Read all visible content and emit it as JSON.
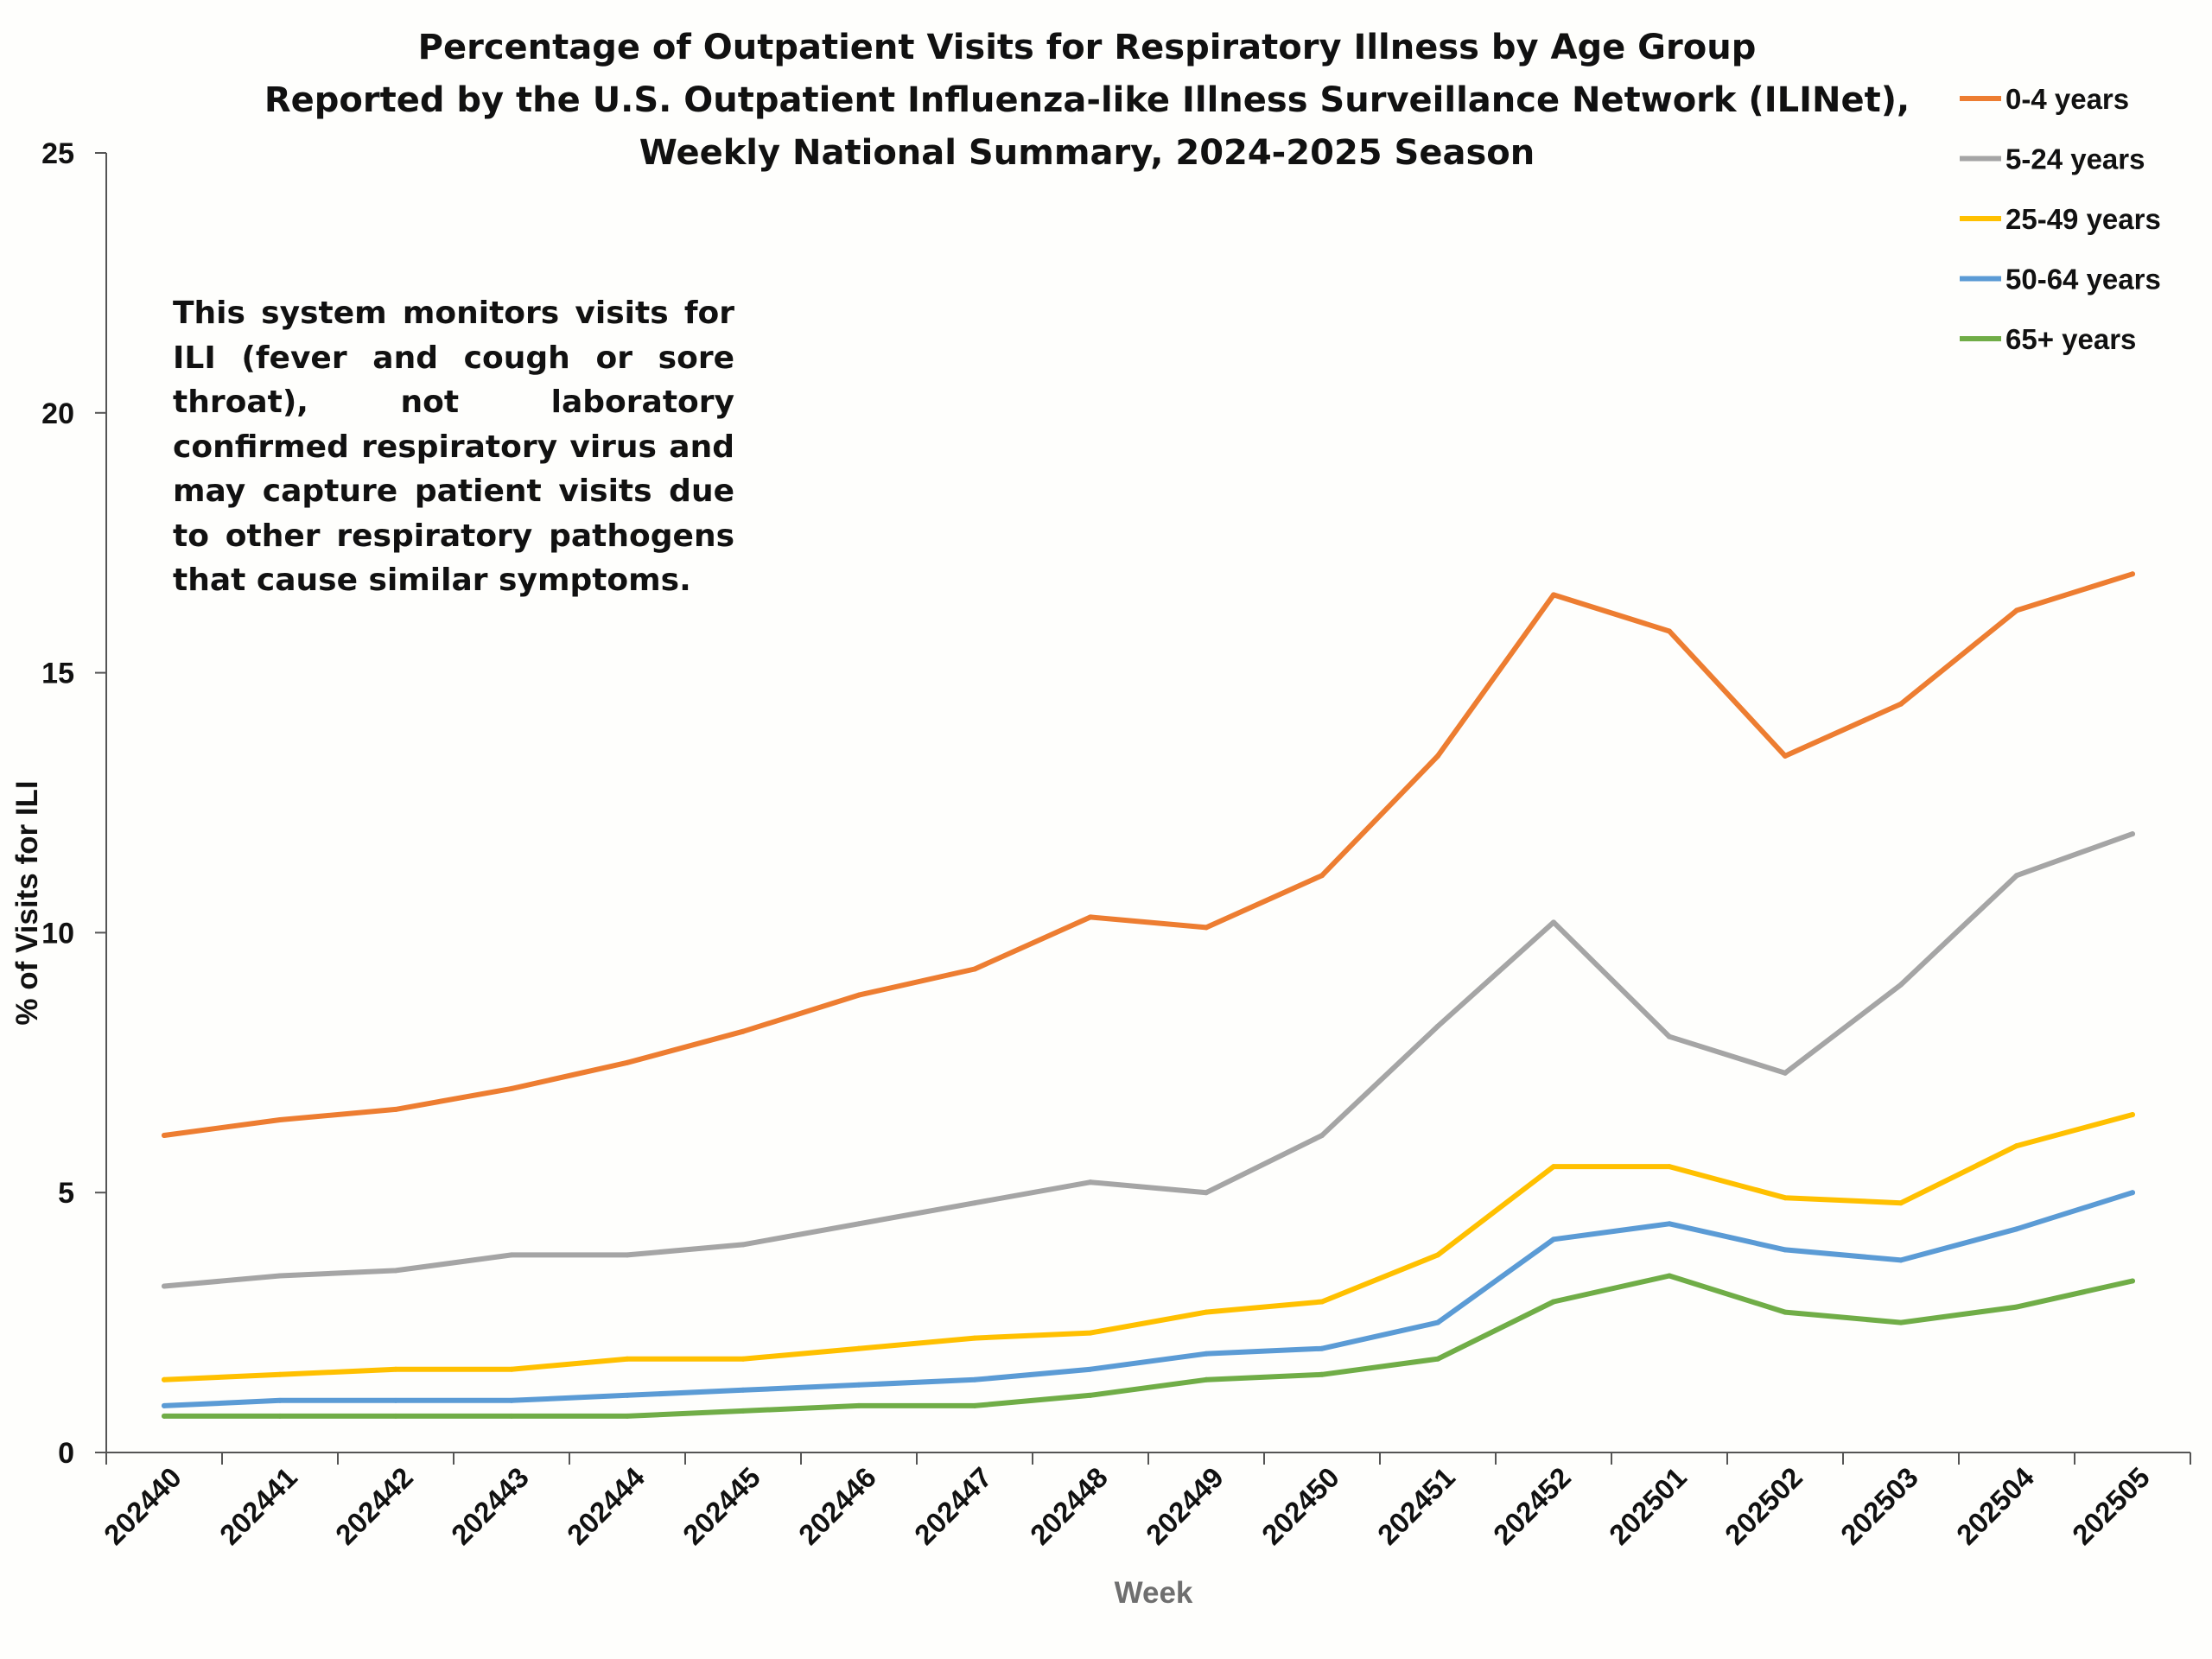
{
  "chart_data": {
    "type": "line",
    "title": [
      "Percentage of Outpatient Visits for Respiratory Illness by Age Group",
      "Reported by the U.S. Outpatient Influenza-like Illness Surveillance Network (ILINet),",
      "Weekly National Summary, 2024-2025 Season"
    ],
    "xlabel": "Week",
    "ylabel": "% of Visits for ILI",
    "ylim": [
      0,
      25
    ],
    "yticks": [
      "0",
      "5",
      "10",
      "15",
      "20",
      "25"
    ],
    "categories": [
      "202440",
      "202441",
      "202442",
      "202443",
      "202444",
      "202445",
      "202446",
      "202447",
      "202448",
      "202449",
      "202450",
      "202451",
      "202452",
      "202501",
      "202502",
      "202503",
      "202504",
      "202505"
    ],
    "grid": false,
    "legend_position": "top-right",
    "annotation": "This system monitors visits for ILI (fever and cough or sore throat), not laboratory confirmed respiratory virus and may capture patient visits due to other respiratory pathogens that cause similar symptoms.",
    "series": [
      {
        "name": "0-4 years",
        "color": "#ed7d31",
        "values": [
          6.1,
          6.4,
          6.6,
          7.0,
          7.5,
          8.1,
          8.8,
          9.3,
          10.3,
          10.1,
          11.1,
          13.4,
          16.5,
          15.8,
          13.4,
          14.4,
          16.2,
          16.9
        ]
      },
      {
        "name": "5-24 years",
        "color": "#a5a5a5",
        "values": [
          3.2,
          3.4,
          3.5,
          3.8,
          3.8,
          4.0,
          4.4,
          4.8,
          5.2,
          5.0,
          6.1,
          8.2,
          10.2,
          8.0,
          7.3,
          9.0,
          11.1,
          11.9
        ]
      },
      {
        "name": "25-49 years",
        "color": "#ffc000",
        "values": [
          1.4,
          1.5,
          1.6,
          1.6,
          1.8,
          1.8,
          2.0,
          2.2,
          2.3,
          2.7,
          2.9,
          3.8,
          5.5,
          5.5,
          4.9,
          4.8,
          5.9,
          6.5
        ]
      },
      {
        "name": "50-64 years",
        "color": "#5b9bd5",
        "values": [
          0.9,
          1.0,
          1.0,
          1.0,
          1.1,
          1.2,
          1.3,
          1.4,
          1.6,
          1.9,
          2.0,
          2.5,
          4.1,
          4.4,
          3.9,
          3.7,
          4.3,
          5.0
        ]
      },
      {
        "name": "65+ years",
        "color": "#70ad47",
        "values": [
          0.7,
          0.7,
          0.7,
          0.7,
          0.7,
          0.8,
          0.9,
          0.9,
          1.1,
          1.4,
          1.5,
          1.8,
          2.9,
          3.4,
          2.7,
          2.5,
          2.8,
          3.3
        ]
      }
    ]
  }
}
